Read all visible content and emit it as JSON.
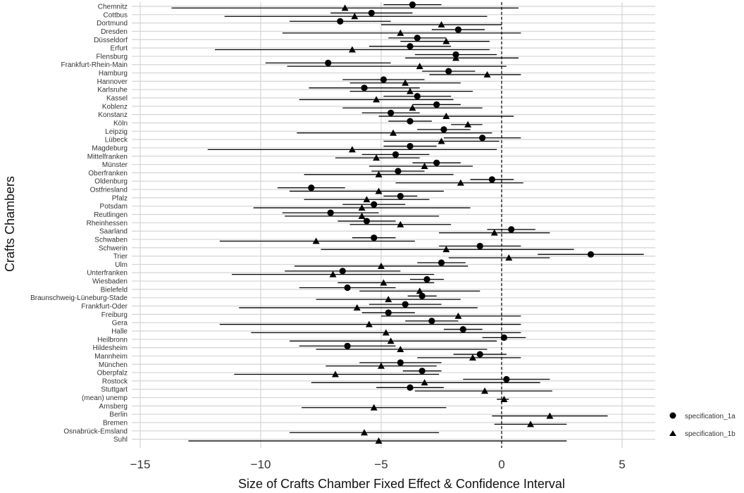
{
  "chart_data": {
    "type": "scatter",
    "xlabel": "Size of Crafts Chamber Fixed Effect & Confidence Interval",
    "ylabel": "Crafts Chambers",
    "xlim": [
      -15,
      6.5
    ],
    "xticks": [
      -15,
      -10,
      -5,
      0,
      5
    ],
    "reference_line_x": 0,
    "grid": true,
    "legend_position": "right",
    "categories": [
      "Chemnitz",
      "Cottbus",
      "Dortmund",
      "Dresden",
      "Düsseldorf",
      "Erfurt",
      "Flensburg",
      "Frankfurt-Rhein-Main",
      "Hamburg",
      "Hannover",
      "Karlsruhe",
      "Kassel",
      "Koblenz",
      "Konstanz",
      "Köln",
      "Leipzig",
      "Lübeck",
      "Magdeburg",
      "Mittelfranken",
      "Münster",
      "Oberfranken",
      "Oldenburg",
      "Ostfriesland",
      "Pfalz",
      "Potsdam",
      "Reutlingen",
      "Rheinhessen",
      "Saarland",
      "Schwaben",
      "Schwerin",
      "Trier",
      "Ulm",
      "Unterfranken",
      "Wiesbaden",
      "Bielefeld",
      "Braunschweig-Lüneburg-Stade",
      "Frankfurt-Oder",
      "Freiburg",
      "Gera",
      "Halle",
      "Heilbronn",
      "Hildesheim",
      "Mannheim",
      "München",
      "Oberpfalz",
      "Rostock",
      "Stuttgart",
      "(mean) unemp",
      "Arnsberg",
      "Berlin",
      "Bremen",
      "Osnabrück-Emsland",
      "Suhl"
    ],
    "series": [
      {
        "name": "specification_1a",
        "marker": "circle",
        "estimate": [
          -3.7,
          -5.4,
          -6.7,
          -1.8,
          -3.5,
          -3.8,
          -1.9,
          -7.2,
          -2.2,
          -4.9,
          -5.7,
          -3.5,
          -2.7,
          -4.6,
          -3.8,
          -2.4,
          -0.8,
          -3.8,
          -4.4,
          -2.7,
          -4.3,
          -0.4,
          -7.9,
          -4.2,
          -5.3,
          -7.1,
          -5.6,
          0.4,
          -5.3,
          -0.9,
          3.7,
          -2.5,
          -6.6,
          -3.1,
          -6.4,
          -3.3,
          -4.0,
          -4.7,
          -2.9,
          -1.6,
          0.1,
          -6.4,
          -0.9,
          -4.2,
          -3.3,
          0.2,
          -3.8,
          null,
          null,
          null,
          null,
          null,
          null
        ],
        "ci_low": [
          -4.9,
          -7.1,
          -8.8,
          -2.9,
          -4.7,
          -5.5,
          -3.6,
          -9.8,
          -3.3,
          -6.6,
          -8.0,
          -4.9,
          -3.7,
          -5.8,
          -4.7,
          -3.5,
          -2.4,
          -4.9,
          -5.8,
          -3.7,
          -5.4,
          -1.3,
          -9.3,
          -4.9,
          -6.6,
          -9.1,
          -6.8,
          -0.6,
          -6.2,
          -2.6,
          1.5,
          -3.5,
          -9.0,
          -3.8,
          -8.4,
          -3.9,
          -5.5,
          -5.8,
          -4.0,
          -2.4,
          -0.8,
          -8.4,
          -2.0,
          -5.9,
          -4.1,
          -1.6,
          -5.2,
          null,
          null,
          null,
          null,
          null,
          null
        ],
        "ci_high": [
          -2.5,
          -3.7,
          -4.6,
          -0.7,
          -2.3,
          -2.1,
          -0.2,
          -4.6,
          -1.1,
          -3.2,
          -3.4,
          -2.1,
          -1.7,
          -3.4,
          -2.9,
          -1.3,
          0.8,
          -2.7,
          -3.0,
          -1.7,
          -3.2,
          0.5,
          -6.5,
          -3.5,
          -4.0,
          -5.1,
          -4.4,
          1.4,
          -4.4,
          0.8,
          5.9,
          -1.5,
          -4.2,
          -2.4,
          -4.4,
          -2.7,
          -2.5,
          -3.6,
          -1.8,
          -0.8,
          1.0,
          -4.4,
          0.2,
          -2.5,
          -2.5,
          2.0,
          -2.4,
          null,
          null,
          null,
          null,
          null,
          null
        ]
      },
      {
        "name": "specification_1b",
        "marker": "triangle",
        "estimate": [
          -6.5,
          -6.1,
          -2.5,
          -4.2,
          -2.3,
          -6.2,
          -1.9,
          -3.4,
          -0.6,
          -4.0,
          -3.8,
          -5.2,
          -3.7,
          -2.3,
          -1.4,
          -4.5,
          -2.5,
          -6.2,
          -5.2,
          -3.2,
          -5.1,
          -1.7,
          -5.1,
          -5.6,
          -5.8,
          -5.8,
          -4.2,
          -0.3,
          -7.7,
          -2.3,
          0.3,
          -5.0,
          -7.0,
          -4.9,
          -3.4,
          -4.7,
          -6.0,
          -1.8,
          -5.5,
          -4.8,
          -4.6,
          -4.2,
          -1.2,
          -5.0,
          -6.9,
          -3.2,
          -0.7,
          0.1,
          -5.3,
          2.0,
          1.2,
          -5.7,
          -5.1
        ],
        "ci_low": [
          -13.7,
          -11.5,
          -5.0,
          -9.1,
          -4.2,
          -11.9,
          -4.0,
          -8.9,
          -3.0,
          -6.3,
          -6.3,
          -8.4,
          -6.6,
          -5.1,
          -2.1,
          -8.5,
          -4.9,
          -12.2,
          -6.9,
          -5.5,
          -8.2,
          -4.4,
          -8.8,
          -8.2,
          -10.3,
          -9.0,
          -6.3,
          -2.6,
          -11.7,
          -7.5,
          -2.2,
          -8.6,
          -11.2,
          -6.8,
          -5.9,
          -7.7,
          -10.9,
          -5.0,
          -11.7,
          -10.4,
          -8.8,
          -7.7,
          -3.5,
          -7.3,
          -11.1,
          -7.9,
          -3.6,
          -0.2,
          -8.3,
          -0.4,
          -0.3,
          -8.8,
          -13.0
        ],
        "ci_high": [
          0.7,
          -0.6,
          0.0,
          0.8,
          -0.5,
          -0.5,
          0.7,
          0.2,
          0.8,
          -1.7,
          -1.2,
          -2.0,
          -0.8,
          0.5,
          -0.8,
          -0.4,
          -0.1,
          -0.2,
          -3.4,
          -1.2,
          -2.0,
          0.9,
          -2.4,
          -3.0,
          -1.3,
          -2.6,
          -2.1,
          2.0,
          -3.6,
          3.0,
          2.0,
          -1.4,
          -2.8,
          -2.8,
          -0.9,
          -1.7,
          -1.0,
          0.8,
          0.8,
          0.8,
          -0.2,
          -0.6,
          0.8,
          -2.7,
          -2.6,
          1.6,
          2.1,
          0.3,
          -2.3,
          4.4,
          2.7,
          -2.6,
          2.7
        ]
      }
    ]
  }
}
